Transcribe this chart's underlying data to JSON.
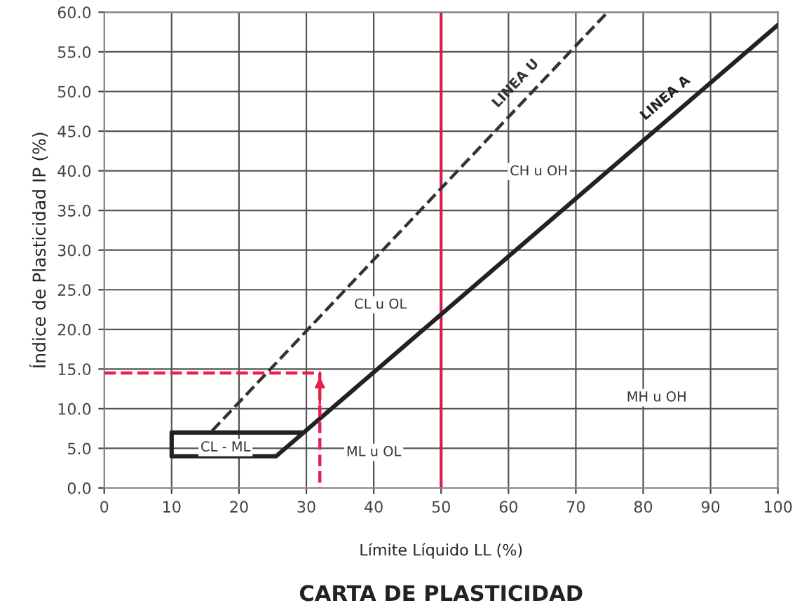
{
  "chart_data": {
    "type": "line",
    "title": "CARTA DE PLASTICIDAD",
    "xlabel": "Límite Líquido LL (%)",
    "ylabel": "Índice de Plasticidad IP (%)",
    "xlim": [
      0,
      100
    ],
    "xticks": [
      0,
      10,
      20,
      30,
      40,
      50,
      60,
      70,
      80,
      90,
      100
    ],
    "ylim": [
      0,
      60
    ],
    "yticks": [
      {
        "value": 0,
        "label": "0.0"
      },
      {
        "value": 5,
        "label": "5.0"
      },
      {
        "value": 10,
        "label": "10.0"
      },
      {
        "value": 15,
        "label": "15.0"
      },
      {
        "value": 20,
        "label": "20.0"
      },
      {
        "value": 25,
        "label": "25.0"
      },
      {
        "value": 30,
        "label": "30.0"
      },
      {
        "value": 35,
        "label": "35.0"
      },
      {
        "value": 40,
        "label": "40.0"
      },
      {
        "value": 45,
        "label": "45.0"
      },
      {
        "value": 50,
        "label": "50.0"
      },
      {
        "value": 55,
        "label": "55.0"
      },
      {
        "value": 60,
        "label": "60.0"
      }
    ],
    "grid": true,
    "legend": false,
    "marker": "none",
    "series": [
      {
        "name": "LINEA A",
        "color": "#222222",
        "line_style": "solid",
        "x": [
          29.6,
          10,
          10,
          25.5,
          100
        ],
        "values": [
          7,
          7,
          4,
          4,
          58.4
        ]
      },
      {
        "name": "LINEA U",
        "color": "#333333",
        "line_style": "dashed",
        "x": [
          16,
          74.7
        ],
        "values": [
          7.2,
          60
        ]
      },
      {
        "color": "#e8204a",
        "line_style": "dashed",
        "x": [
          0,
          32,
          32
        ],
        "values": [
          14.5,
          14.5,
          0
        ]
      }
    ],
    "ref_lines": [
      {
        "axis": "x",
        "value": 50,
        "color": "#d81b4a",
        "line_style": "solid"
      }
    ],
    "annotations": [
      "CH u OH",
      "CL u OL",
      "CL - ML",
      "ML u OL",
      "MH u OH"
    ]
  }
}
